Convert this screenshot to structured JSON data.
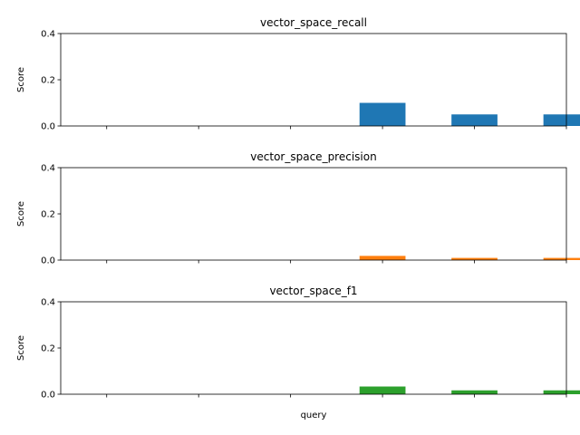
{
  "chart_data": [
    {
      "type": "bar",
      "title": "vector_space_recall",
      "ylabel": "Score",
      "xlabel": "",
      "ylim": [
        0,
        0.4
      ],
      "yticks": [
        "0.0",
        "0.2",
        "0.4"
      ],
      "categories": [
        "",
        "",
        "",
        "",
        "",
        ""
      ],
      "values": [
        0,
        0,
        0,
        0.1,
        0.05,
        0.05
      ],
      "color": "#1f77b4",
      "grid": false,
      "legend": "none"
    },
    {
      "type": "bar",
      "title": "vector_space_precision",
      "ylabel": "Score",
      "xlabel": "",
      "ylim": [
        0,
        0.4
      ],
      "yticks": [
        "0.0",
        "0.2",
        "0.4"
      ],
      "categories": [
        "",
        "",
        "",
        "",
        "",
        ""
      ],
      "values": [
        0,
        0,
        0,
        0.0182,
        0.0095,
        0.0095
      ],
      "color": "#ff7f0e",
      "grid": false,
      "legend": "none"
    },
    {
      "type": "bar",
      "title": "vector_space_f1",
      "ylabel": "Score",
      "xlabel": "query",
      "ylim": [
        0,
        0.4
      ],
      "yticks": [
        "0.0",
        "0.2",
        "0.4"
      ],
      "categories": [
        "",
        "",
        "",
        "",
        "",
        ""
      ],
      "values": [
        0,
        0,
        0,
        0.0333,
        0.0167,
        0.0167
      ],
      "color": "#2ca02c",
      "grid": false,
      "legend": "none"
    }
  ]
}
